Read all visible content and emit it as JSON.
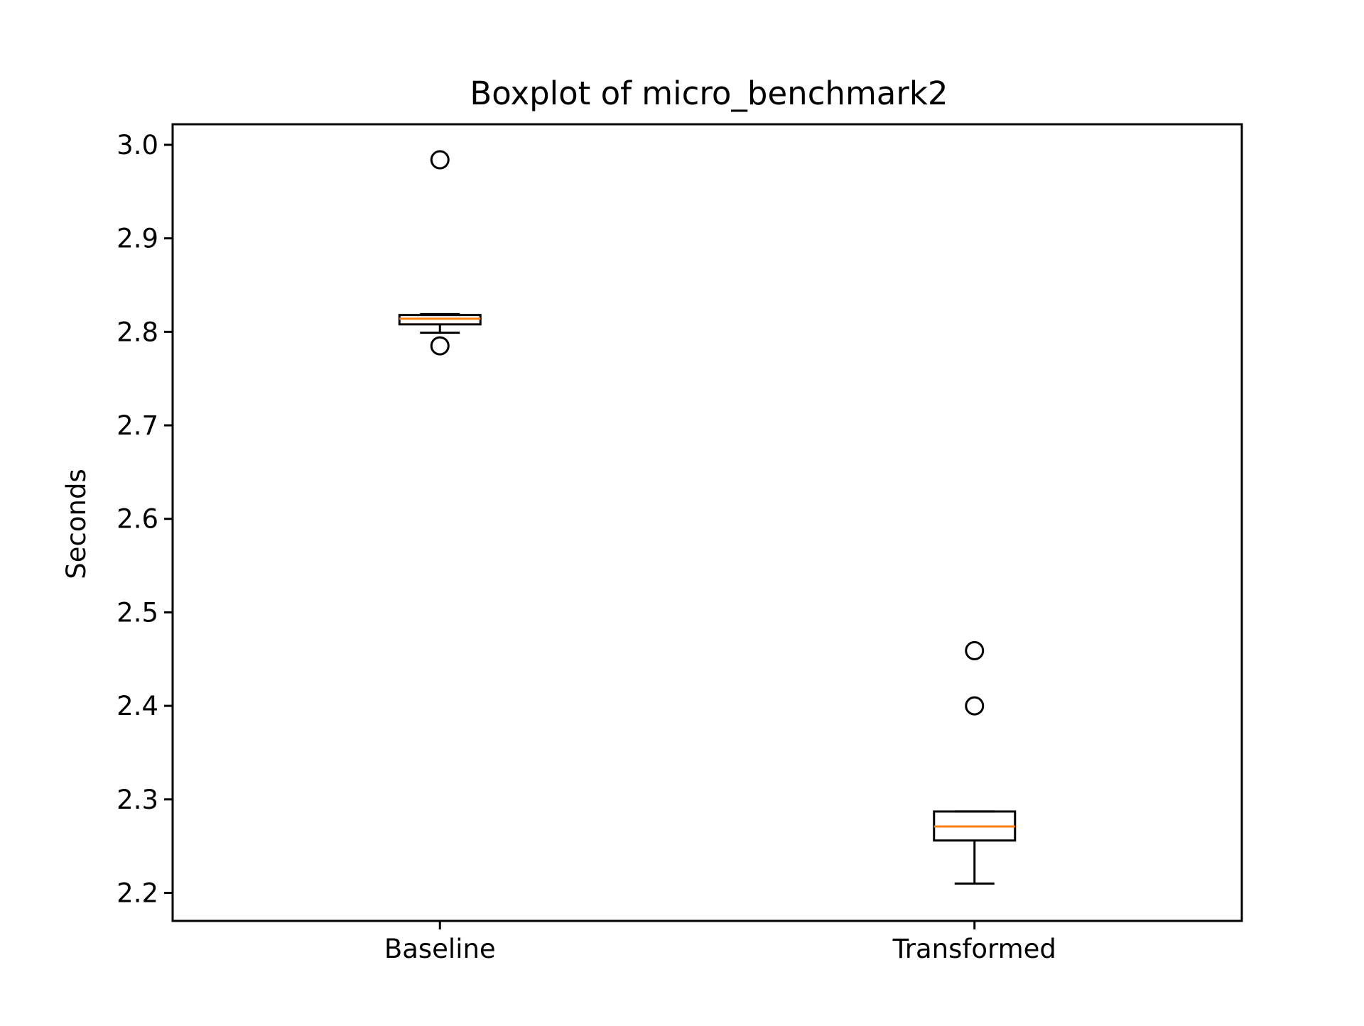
{
  "chart_data": {
    "type": "box",
    "title": "Boxplot of micro_benchmark2",
    "xlabel": "",
    "ylabel": "Seconds",
    "ylim": [
      2.17,
      3.022
    ],
    "yticks": [
      2.2,
      2.3,
      2.4,
      2.5,
      2.6,
      2.7,
      2.8,
      2.9,
      3.0
    ],
    "ytick_labels": [
      "2.2",
      "2.3",
      "2.4",
      "2.5",
      "2.6",
      "2.7",
      "2.8",
      "2.9",
      "3.0"
    ],
    "grid": false,
    "categories": [
      "Baseline",
      "Transformed"
    ],
    "boxes": [
      {
        "label": "Baseline",
        "whisker_low": 2.799,
        "q1": 2.808,
        "median": 2.814,
        "q3": 2.818,
        "whisker_high": 2.819,
        "outliers": [
          2.984,
          2.785
        ]
      },
      {
        "label": "Transformed",
        "whisker_low": 2.21,
        "q1": 2.256,
        "median": 2.271,
        "q3": 2.287,
        "whisker_high": 2.287,
        "outliers": [
          2.459,
          2.4
        ]
      }
    ],
    "colors": {
      "box": "#000000",
      "median": "#ff7f0e"
    }
  }
}
